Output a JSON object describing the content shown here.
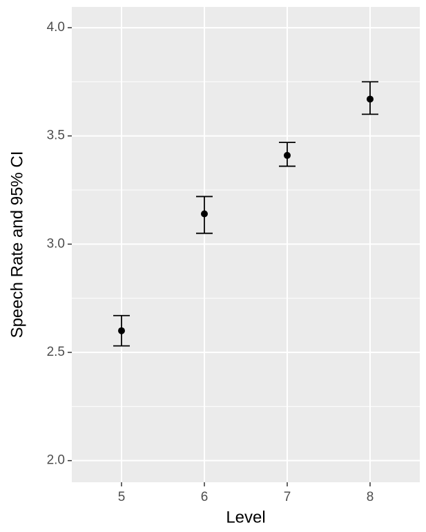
{
  "chart_data": {
    "type": "errorbar",
    "x_label": "Level",
    "y_label": "Speech Rate and 95% CI",
    "x": [
      5,
      6,
      7,
      8
    ],
    "values": [
      2.6,
      3.14,
      3.41,
      3.67
    ],
    "lower": [
      2.53,
      3.05,
      3.36,
      3.6
    ],
    "upper": [
      2.67,
      3.22,
      3.47,
      3.75
    ],
    "color": "#000000",
    "xlim": [
      4.4,
      8.6
    ],
    "xticks": [
      5,
      6,
      7,
      8
    ],
    "ylim": [
      1.9,
      4.096
    ],
    "yticks": [
      {
        "value": 2,
        "label": "2.0"
      },
      {
        "value": 2.5,
        "label": "2.5"
      },
      {
        "value": 3,
        "label": "3.0"
      },
      {
        "value": 3.5,
        "label": "3.5"
      },
      {
        "value": 4,
        "label": "4.0"
      }
    ],
    "y_minor_ticks": [
      2.25,
      2.75,
      3.25,
      3.75
    ],
    "grid": true
  }
}
